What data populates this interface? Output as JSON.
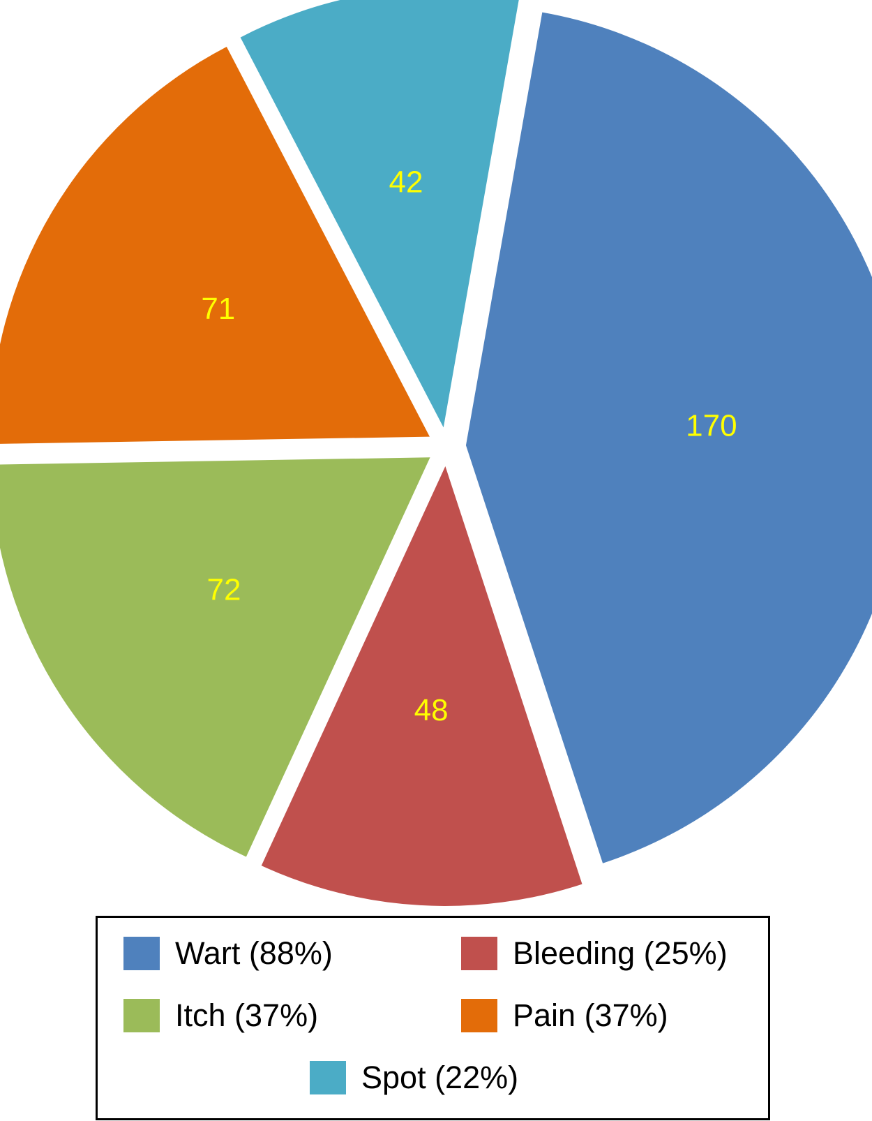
{
  "chart_data": {
    "type": "pie",
    "exploded": true,
    "label_color": "#FFFF00",
    "slices": [
      {
        "value": 170,
        "data_label": "170",
        "legend_label": "Wart (88%)",
        "color": "#4F81BD"
      },
      {
        "value": 48,
        "data_label": "48",
        "legend_label": "Bleeding (25%)",
        "color": "#C0504D"
      },
      {
        "value": 72,
        "data_label": "72",
        "legend_label": "Itch (37%)",
        "color": "#9BBB59"
      },
      {
        "value": 71,
        "data_label": "71",
        "legend_label": "Pain (37%)",
        "color": "#E36C09"
      },
      {
        "value": 42,
        "data_label": "42",
        "legend_label": "Spot (22%)",
        "color": "#4BACC6"
      }
    ],
    "legend_position": "bottom"
  }
}
